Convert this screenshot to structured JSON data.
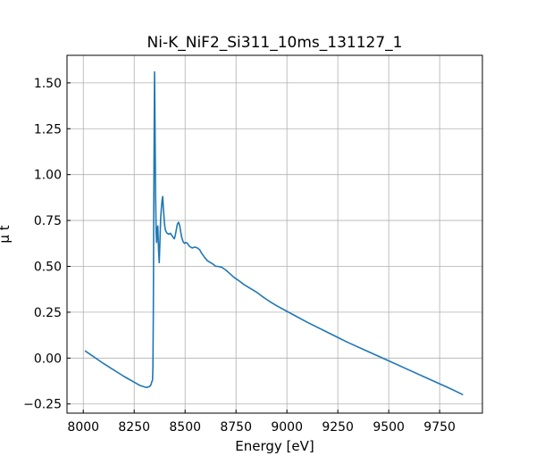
{
  "chart_data": {
    "type": "line",
    "title": "Ni-K_NiF2_Si311_10ms_131127_1",
    "xlabel": "Energy [eV]",
    "ylabel": "μ t",
    "xlim": [
      7920,
      9960
    ],
    "ylim": [
      -0.3,
      1.65
    ],
    "grid": true,
    "line_color": "#1f77b4",
    "x_ticks": [
      8000,
      8250,
      8500,
      8750,
      9000,
      9250,
      9500,
      9750
    ],
    "x_tick_labels": [
      "8000",
      "8250",
      "8500",
      "8750",
      "9000",
      "9250",
      "9500",
      "9750"
    ],
    "y_ticks": [
      -0.25,
      0.0,
      0.25,
      0.5,
      0.75,
      1.0,
      1.25,
      1.5
    ],
    "y_tick_labels": [
      "−0.25",
      "0.00",
      "0.25",
      "0.50",
      "0.75",
      "1.00",
      "1.25",
      "1.50"
    ],
    "series": [
      {
        "x": [
          8008,
          8100,
          8200,
          8280,
          8310,
          8325,
          8330,
          8334,
          8336,
          8340,
          8342,
          8344,
          8346,
          8348,
          8350,
          8352,
          8355,
          8358,
          8360,
          8363,
          8366,
          8370,
          8373,
          8376,
          8380,
          8383,
          8387,
          8390,
          8393,
          8397,
          8400,
          8403,
          8406,
          8412,
          8420,
          8428,
          8434,
          8440,
          8447,
          8452,
          8457,
          8462,
          8468,
          8474,
          8478,
          8483,
          8490,
          8497,
          8503,
          8512,
          8520,
          8535,
          8548,
          8560,
          8572,
          8582,
          8595,
          8610,
          8625,
          8640,
          8650,
          8660,
          8680,
          8700,
          8720,
          8740,
          8760,
          8790,
          8820,
          8850,
          8880,
          8900,
          8920,
          8950,
          9000,
          9100,
          9200,
          9300,
          9400,
          9500,
          9600,
          9700,
          9800,
          9865
        ],
        "y": [
          0.04,
          -0.03,
          -0.1,
          -0.15,
          -0.16,
          -0.155,
          -0.15,
          -0.14,
          -0.13,
          -0.12,
          -0.05,
          0.25,
          0.8,
          1.2,
          1.56,
          1.3,
          0.9,
          0.68,
          0.63,
          0.7,
          0.72,
          0.58,
          0.52,
          0.62,
          0.76,
          0.81,
          0.86,
          0.88,
          0.82,
          0.76,
          0.72,
          0.7,
          0.69,
          0.68,
          0.675,
          0.68,
          0.67,
          0.66,
          0.65,
          0.67,
          0.7,
          0.73,
          0.74,
          0.72,
          0.69,
          0.66,
          0.635,
          0.625,
          0.63,
          0.625,
          0.61,
          0.6,
          0.605,
          0.6,
          0.59,
          0.57,
          0.55,
          0.53,
          0.52,
          0.51,
          0.5,
          0.5,
          0.495,
          0.48,
          0.46,
          0.44,
          0.425,
          0.4,
          0.38,
          0.36,
          0.335,
          0.32,
          0.305,
          0.285,
          0.255,
          0.195,
          0.14,
          0.085,
          0.035,
          -0.015,
          -0.065,
          -0.115,
          -0.165,
          -0.2
        ]
      }
    ]
  }
}
